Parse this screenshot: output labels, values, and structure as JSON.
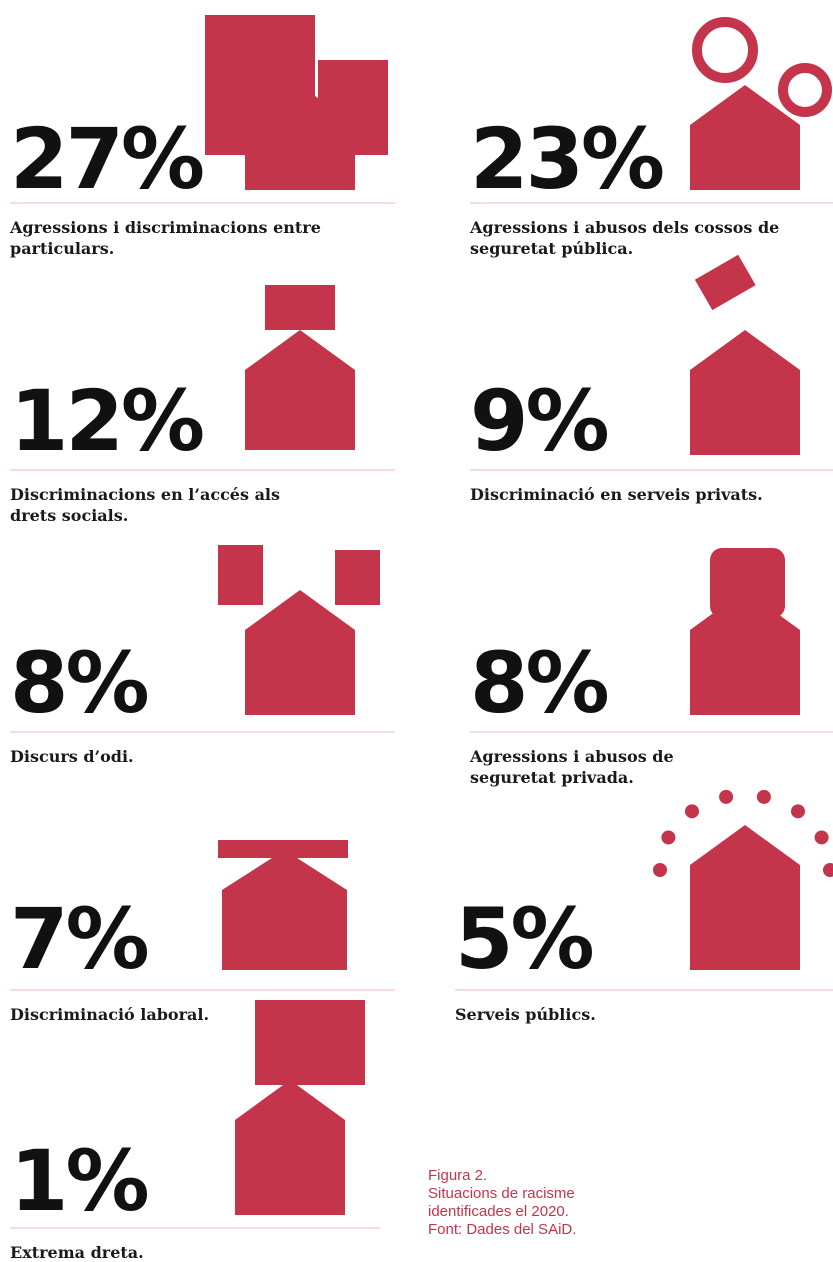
{
  "items": [
    {
      "percent": "27%",
      "label": [
        "Agressions i discriminacions entre",
        "particulars."
      ]
    },
    {
      "percent": "23%",
      "label": [
        "Agressions i abusos dels cossos de",
        "seguretat pública."
      ]
    },
    {
      "percent": "12%",
      "label": [
        "Discriminacions en l’accés als",
        "drets socials."
      ]
    },
    {
      "percent": "9%",
      "label": [
        "Discriminació en serveis privats."
      ]
    },
    {
      "percent": "8%",
      "label": [
        "Discurs d’odi."
      ]
    },
    {
      "percent": "8%",
      "label": [
        "Agressions i abusos de",
        "seguretat privada."
      ]
    },
    {
      "percent": "7%",
      "label": [
        "Discriminació laboral."
      ]
    },
    {
      "percent": "5%",
      "label": [
        "Serveis públics."
      ]
    },
    {
      "percent": "1%",
      "label": [
        "Extrema dreta."
      ]
    }
  ],
  "caption": [
    "Figura 2.",
    "Situacions de racisme",
    "identificades el 2020.",
    "Font: Dades del SAiD."
  ]
}
